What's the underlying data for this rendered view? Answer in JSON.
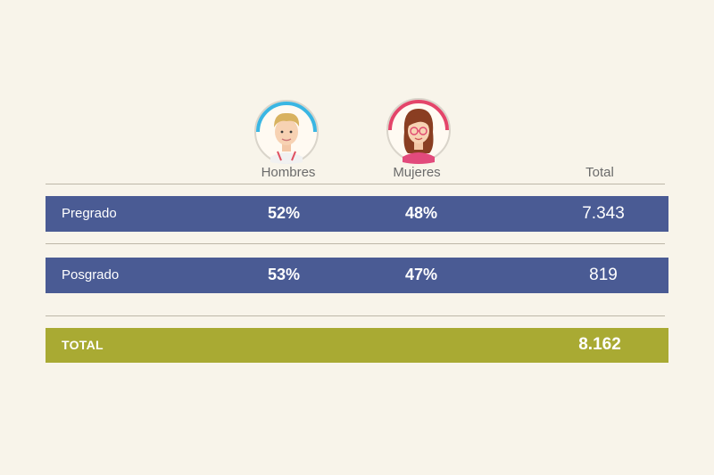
{
  "header": {
    "men": "Hombres",
    "women": "Mujeres",
    "total": "Total"
  },
  "rows": [
    {
      "label": "Pregrado",
      "men": "52%",
      "women": "48%",
      "total": "7.343"
    },
    {
      "label": "Posgrado",
      "men": "53%",
      "women": "47%",
      "total": "819"
    }
  ],
  "footer": {
    "label": "TOTAL",
    "total": "8.162"
  },
  "icons": {
    "men": "man-avatar-icon",
    "women": "woman-avatar-icon"
  },
  "colors": {
    "background": "#f8f4ea",
    "row": "#4a5b94",
    "total_row": "#a9aa33",
    "men_ring": "#3ab6e3",
    "women_ring": "#e4456a"
  }
}
